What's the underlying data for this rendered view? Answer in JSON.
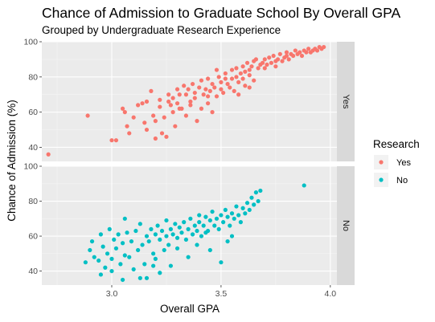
{
  "chart_data": {
    "type": "scatter",
    "title": "Chance of Admission to Graduate School By Overall GPA",
    "subtitle": "Grouped by Undergraduate Research Experience",
    "xlabel": "Overall GPA",
    "ylabel": "Chance of Admission (%)",
    "xlim": [
      2.68,
      4.03
    ],
    "ylim": [
      32,
      100
    ],
    "x_ticks": [
      3.0,
      3.5,
      4.0
    ],
    "x_tick_labels": [
      "3.0",
      "3.5",
      "4.0"
    ],
    "y_ticks": [
      40,
      60,
      80,
      100
    ],
    "y_tick_labels": [
      "40",
      "60",
      "80",
      "100"
    ],
    "grid": true,
    "facet_by": "Research",
    "legend": {
      "title": "Research",
      "position": "right"
    },
    "series": [
      {
        "name": "Yes",
        "facet": "Yes",
        "color": "#F8766D",
        "points": [
          [
            2.71,
            36
          ],
          [
            2.89,
            58
          ],
          [
            3.0,
            44
          ],
          [
            3.02,
            44
          ],
          [
            3.05,
            62
          ],
          [
            3.06,
            60
          ],
          [
            3.07,
            52
          ],
          [
            3.08,
            48
          ],
          [
            3.1,
            57
          ],
          [
            3.12,
            64
          ],
          [
            3.14,
            65
          ],
          [
            3.15,
            54
          ],
          [
            3.16,
            50
          ],
          [
            3.16,
            66
          ],
          [
            3.18,
            72
          ],
          [
            3.19,
            58
          ],
          [
            3.2,
            55
          ],
          [
            3.2,
            45
          ],
          [
            3.22,
            63
          ],
          [
            3.22,
            67
          ],
          [
            3.23,
            48
          ],
          [
            3.24,
            57
          ],
          [
            3.25,
            46
          ],
          [
            3.26,
            66
          ],
          [
            3.26,
            70
          ],
          [
            3.27,
            64
          ],
          [
            3.28,
            68
          ],
          [
            3.28,
            60
          ],
          [
            3.29,
            52
          ],
          [
            3.3,
            73
          ],
          [
            3.3,
            65
          ],
          [
            3.31,
            70
          ],
          [
            3.32,
            62
          ],
          [
            3.33,
            75
          ],
          [
            3.34,
            70
          ],
          [
            3.34,
            58
          ],
          [
            3.35,
            73
          ],
          [
            3.36,
            64
          ],
          [
            3.37,
            76
          ],
          [
            3.38,
            68
          ],
          [
            3.38,
            71
          ],
          [
            3.39,
            55
          ],
          [
            3.4,
            74
          ],
          [
            3.41,
            78
          ],
          [
            3.41,
            62
          ],
          [
            3.42,
            70
          ],
          [
            3.43,
            73
          ],
          [
            3.44,
            65
          ],
          [
            3.44,
            79
          ],
          [
            3.45,
            72
          ],
          [
            3.46,
            76
          ],
          [
            3.46,
            60
          ],
          [
            3.47,
            74
          ],
          [
            3.48,
            69
          ],
          [
            3.49,
            80
          ],
          [
            3.5,
            77
          ],
          [
            3.5,
            73
          ],
          [
            3.51,
            71
          ],
          [
            3.52,
            79
          ],
          [
            3.52,
            82
          ],
          [
            3.53,
            76
          ],
          [
            3.54,
            74
          ],
          [
            3.55,
            84
          ],
          [
            3.55,
            79
          ],
          [
            3.56,
            72
          ],
          [
            3.57,
            85
          ],
          [
            3.57,
            80
          ],
          [
            3.58,
            77
          ],
          [
            3.59,
            82
          ],
          [
            3.6,
            86
          ],
          [
            3.6,
            79
          ],
          [
            3.61,
            83
          ],
          [
            3.61,
            75
          ],
          [
            3.62,
            88
          ],
          [
            3.63,
            84
          ],
          [
            3.63,
            81
          ],
          [
            3.64,
            86
          ],
          [
            3.65,
            89
          ],
          [
            3.65,
            78
          ],
          [
            3.66,
            90
          ],
          [
            3.67,
            85
          ],
          [
            3.68,
            87
          ],
          [
            3.69,
            88
          ],
          [
            3.7,
            85
          ],
          [
            3.7,
            90
          ],
          [
            3.71,
            87
          ],
          [
            3.72,
            91
          ],
          [
            3.73,
            88
          ],
          [
            3.74,
            92
          ],
          [
            3.75,
            89
          ],
          [
            3.75,
            86
          ],
          [
            3.76,
            90
          ],
          [
            3.77,
            93
          ],
          [
            3.78,
            89
          ],
          [
            3.79,
            91
          ],
          [
            3.8,
            92
          ],
          [
            3.8,
            94
          ],
          [
            3.81,
            90
          ],
          [
            3.82,
            93
          ],
          [
            3.83,
            92
          ],
          [
            3.84,
            95
          ],
          [
            3.85,
            93
          ],
          [
            3.86,
            94
          ],
          [
            3.87,
            92
          ],
          [
            3.88,
            95
          ],
          [
            3.89,
            94
          ],
          [
            3.9,
            96
          ],
          [
            3.91,
            94
          ],
          [
            3.92,
            95
          ],
          [
            3.93,
            96
          ],
          [
            3.94,
            95
          ],
          [
            3.95,
            97
          ],
          [
            3.96,
            96
          ],
          [
            3.97,
            97
          ],
          [
            3.63,
            74
          ],
          [
            3.58,
            70
          ],
          [
            3.48,
            84
          ],
          [
            3.44,
            69
          ],
          [
            3.36,
            66
          ],
          [
            3.31,
            62
          ]
        ]
      },
      {
        "name": "No",
        "facet": "No",
        "color": "#00BFC4",
        "points": [
          [
            2.88,
            45
          ],
          [
            2.9,
            52
          ],
          [
            2.91,
            57
          ],
          [
            2.92,
            48
          ],
          [
            2.94,
            46
          ],
          [
            2.95,
            61
          ],
          [
            2.96,
            54
          ],
          [
            2.97,
            42
          ],
          [
            2.98,
            50
          ],
          [
            2.99,
            64
          ],
          [
            3.0,
            47
          ],
          [
            3.01,
            58
          ],
          [
            3.02,
            53
          ],
          [
            3.03,
            61
          ],
          [
            3.04,
            44
          ],
          [
            3.05,
            56
          ],
          [
            3.06,
            49
          ],
          [
            3.06,
            70
          ],
          [
            3.07,
            62
          ],
          [
            3.08,
            48
          ],
          [
            3.09,
            57
          ],
          [
            3.1,
            41
          ],
          [
            3.11,
            63
          ],
          [
            3.12,
            52
          ],
          [
            3.13,
            67
          ],
          [
            3.14,
            55
          ],
          [
            3.15,
            44
          ],
          [
            3.16,
            60
          ],
          [
            3.16,
            36
          ],
          [
            3.17,
            57
          ],
          [
            3.18,
            64
          ],
          [
            3.19,
            50
          ],
          [
            3.2,
            61
          ],
          [
            3.2,
            47
          ],
          [
            3.21,
            66
          ],
          [
            3.22,
            58
          ],
          [
            3.23,
            63
          ],
          [
            3.24,
            52
          ],
          [
            3.25,
            69
          ],
          [
            3.25,
            60
          ],
          [
            3.26,
            55
          ],
          [
            3.27,
            64
          ],
          [
            3.28,
            61
          ],
          [
            3.29,
            67
          ],
          [
            3.3,
            59
          ],
          [
            3.3,
            53
          ],
          [
            3.31,
            65
          ],
          [
            3.32,
            62
          ],
          [
            3.33,
            68
          ],
          [
            3.34,
            58
          ],
          [
            3.35,
            64
          ],
          [
            3.36,
            70
          ],
          [
            3.37,
            61
          ],
          [
            3.38,
            66
          ],
          [
            3.39,
            63
          ],
          [
            3.4,
            72
          ],
          [
            3.4,
            68
          ],
          [
            3.41,
            60
          ],
          [
            3.42,
            66
          ],
          [
            3.43,
            71
          ],
          [
            3.44,
            63
          ],
          [
            3.45,
            69
          ],
          [
            3.46,
            74
          ],
          [
            3.47,
            66
          ],
          [
            3.48,
            70
          ],
          [
            3.49,
            64
          ],
          [
            3.5,
            72
          ],
          [
            3.51,
            68
          ],
          [
            3.52,
            75
          ],
          [
            3.53,
            71
          ],
          [
            3.54,
            66
          ],
          [
            3.55,
            73
          ],
          [
            3.56,
            70
          ],
          [
            3.57,
            77
          ],
          [
            3.58,
            72
          ],
          [
            3.59,
            68
          ],
          [
            3.6,
            76
          ],
          [
            3.61,
            73
          ],
          [
            3.62,
            79
          ],
          [
            3.63,
            75
          ],
          [
            3.64,
            82
          ],
          [
            3.65,
            78
          ],
          [
            3.66,
            85
          ],
          [
            3.67,
            80
          ],
          [
            3.68,
            86
          ],
          [
            3.88,
            89
          ],
          [
            3.27,
            43
          ],
          [
            3.22,
            39
          ],
          [
            3.13,
            36
          ],
          [
            3.45,
            52
          ],
          [
            3.5,
            45
          ],
          [
            3.39,
            55
          ],
          [
            3.55,
            60
          ],
          [
            3.35,
            48
          ],
          [
            3.19,
            43
          ],
          [
            3.0,
            40
          ],
          [
            2.95,
            38
          ],
          [
            3.05,
            35
          ],
          [
            3.53,
            57
          ],
          [
            3.43,
            62
          ]
        ]
      }
    ]
  },
  "facets": [
    {
      "label": "Yes"
    },
    {
      "label": "No"
    }
  ]
}
